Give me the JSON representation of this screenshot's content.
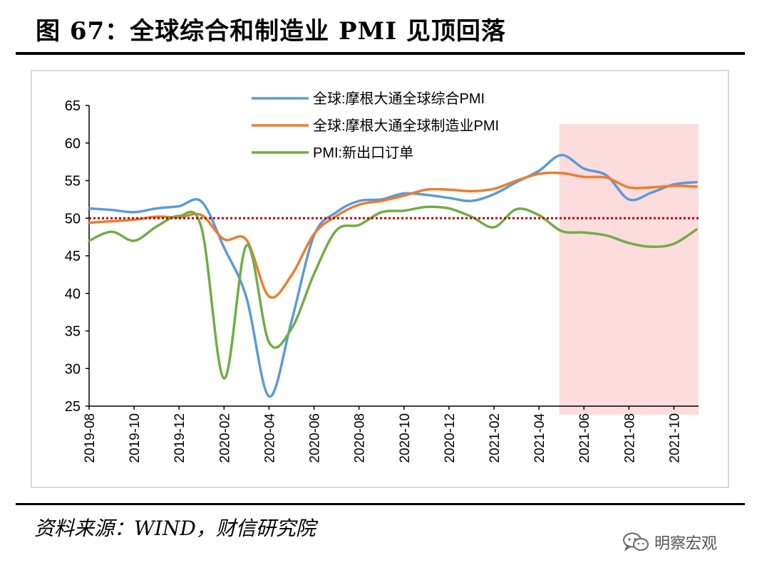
{
  "figure": {
    "title": "图 67：全球综合和制造业 PMI 见顶回落",
    "source": "资料来源：WIND，财信研究院",
    "watermark": "明察宏观"
  },
  "colors": {
    "composite": "#5b9bd5",
    "manufacturing": "#ed7d31",
    "export_orders": "#70ad47",
    "threshold": "#c00000",
    "highlight": "#fcdcdc",
    "axis": "#000000"
  },
  "chart_data": {
    "type": "line",
    "title": "",
    "xlabel": "",
    "ylabel": "",
    "ylim": [
      25,
      65
    ],
    "yticks": [
      25,
      30,
      35,
      40,
      45,
      50,
      55,
      60,
      65
    ],
    "grid": false,
    "legend_position": "top-center",
    "x": [
      "2019-08",
      "2019-09",
      "2019-10",
      "2019-11",
      "2019-12",
      "2020-01",
      "2020-02",
      "2020-03",
      "2020-04",
      "2020-05",
      "2020-06",
      "2020-07",
      "2020-08",
      "2020-09",
      "2020-10",
      "2020-11",
      "2020-12",
      "2021-01",
      "2021-02",
      "2021-03",
      "2021-04",
      "2021-05",
      "2021-06",
      "2021-07",
      "2021-08",
      "2021-09",
      "2021-10",
      "2021-11"
    ],
    "xticks": [
      "2019-08",
      "2019-10",
      "2019-12",
      "2020-02",
      "2020-04",
      "2020-06",
      "2020-08",
      "2020-10",
      "2020-12",
      "2021-02",
      "2021-04",
      "2021-06",
      "2021-08",
      "2021-10"
    ],
    "reference_line": {
      "y": 50,
      "style": "dotted"
    },
    "highlight_range": {
      "from": "2021-05",
      "to": "2021-11"
    },
    "series": [
      {
        "name": "全球:摩根大通全球综合PMI",
        "color_key": "composite",
        "values": [
          51.3,
          51.1,
          50.8,
          51.3,
          51.6,
          52.2,
          46.1,
          39.4,
          26.3,
          36.3,
          47.7,
          50.8,
          52.3,
          52.5,
          53.3,
          53.1,
          52.7,
          52.3,
          53.2,
          54.8,
          56.3,
          58.4,
          56.6,
          55.7,
          52.5,
          53.4,
          54.5,
          54.8
        ]
      },
      {
        "name": "全球:摩根大通全球制造业PMI",
        "color_key": "manufacturing",
        "values": [
          49.4,
          49.6,
          49.8,
          50.2,
          50.1,
          50.4,
          47.2,
          47.1,
          39.6,
          42.4,
          47.9,
          50.3,
          51.8,
          52.3,
          53.0,
          53.8,
          53.8,
          53.6,
          53.9,
          55.0,
          55.9,
          56.0,
          55.5,
          55.4,
          54.1,
          54.1,
          54.3,
          54.2
        ]
      },
      {
        "name": "PMI:新出口订单",
        "color_key": "export_orders",
        "values": [
          47.0,
          48.2,
          47.0,
          48.9,
          50.3,
          48.7,
          28.7,
          46.4,
          33.5,
          35.3,
          42.6,
          48.4,
          49.1,
          50.8,
          51.0,
          51.5,
          51.3,
          50.2,
          48.8,
          51.2,
          50.4,
          48.3,
          48.1,
          47.7,
          46.7,
          46.2,
          46.6,
          48.5
        ]
      }
    ]
  }
}
